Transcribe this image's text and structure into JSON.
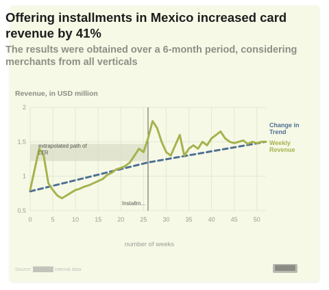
{
  "header": {
    "title": "Offering installments in Mexico increased card revenue by 41%",
    "subtitle": "The results were obtained over a 6-month period, considering merchants from all verticals"
  },
  "colors": {
    "card_bg": "#f6f9e6",
    "trend": "#4e6f93",
    "weekly": "#a6b24d",
    "band": "#d9dcc6",
    "grid": "#e4e7d2"
  },
  "annotations": {
    "band_label_1": "extrapolated path of",
    "band_label_2": "LTR",
    "divider_label": "Installm..."
  },
  "footer": {
    "source": "Source: ██████ internal data",
    "logo": "██████"
  },
  "chart_data": {
    "type": "line",
    "title": "Offering installments in Mexico increased card revenue by 41%",
    "subtitle": "The results were obtained over a 6-month period, considering merchants from all verticals",
    "ylabel": "Revenue, in USD million",
    "xlabel": "number of weeks",
    "ylim": [
      0.5,
      2
    ],
    "xlim": [
      0,
      52
    ],
    "y_ticks": [
      "0.5",
      "1",
      "1.5",
      "2"
    ],
    "x_ticks": [
      "0",
      "5",
      "10",
      "15",
      "20",
      "25",
      "30",
      "35",
      "40",
      "45",
      "50"
    ],
    "x_tick_values": [
      0,
      5,
      10,
      15,
      20,
      25,
      30,
      35,
      40,
      45,
      50
    ],
    "grid": true,
    "legend_position": "right",
    "intervention_week": 26,
    "band": {
      "x_start": 0,
      "x_end": 26,
      "y_low": 1.22,
      "y_high": 1.47
    },
    "series": [
      {
        "name": "Change in Trend",
        "style": "dashed",
        "x": [
          0,
          26,
          52
        ],
        "values": [
          0.78,
          1.2,
          1.5
        ]
      },
      {
        "name": "Weekly Revenue",
        "style": "solid",
        "x": [
          0,
          1,
          2,
          3,
          4,
          5,
          6,
          7,
          8,
          9,
          10,
          11,
          12,
          13,
          14,
          15,
          16,
          17,
          18,
          19,
          20,
          21,
          22,
          23,
          24,
          25,
          26,
          27,
          28,
          29,
          30,
          31,
          32,
          33,
          34,
          35,
          36,
          37,
          38,
          39,
          40,
          41,
          42,
          43,
          44,
          45,
          46,
          47,
          48,
          49,
          50,
          51,
          52
        ],
        "values": [
          0.8,
          1.1,
          1.4,
          1.3,
          0.9,
          0.8,
          0.72,
          0.68,
          0.72,
          0.76,
          0.8,
          0.82,
          0.85,
          0.87,
          0.9,
          0.93,
          0.96,
          1.02,
          1.05,
          1.1,
          1.12,
          1.15,
          1.2,
          1.3,
          1.4,
          1.35,
          1.55,
          1.8,
          1.7,
          1.5,
          1.35,
          1.3,
          1.45,
          1.6,
          1.3,
          1.4,
          1.45,
          1.4,
          1.5,
          1.45,
          1.55,
          1.6,
          1.65,
          1.55,
          1.5,
          1.48,
          1.5,
          1.52,
          1.47,
          1.5,
          1.48,
          1.5,
          1.5
        ]
      }
    ]
  }
}
